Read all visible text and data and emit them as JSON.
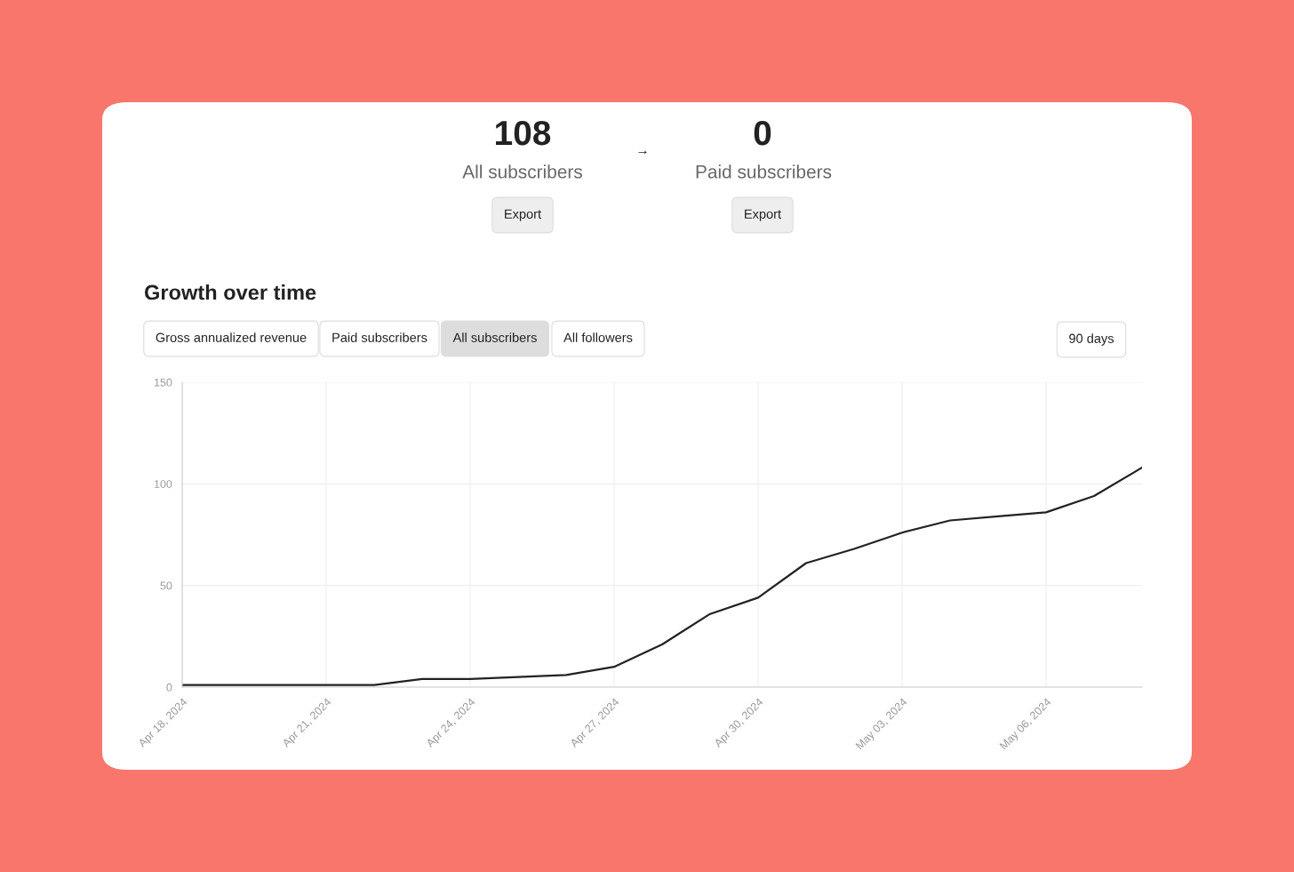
{
  "chart_data": {
    "type": "line",
    "title": "Growth over time",
    "annotations": [
      "108",
      "All subscribers",
      "→",
      "0",
      "Paid subscribers",
      "Export",
      "Export",
      "Gross annualized revenue",
      "Paid subscribers",
      "All subscribers",
      "All followers",
      "90 days"
    ],
    "x": [
      "2024-04-18",
      "2024-04-19",
      "2024-04-20",
      "2024-04-21",
      "2024-04-22",
      "2024-04-23",
      "2024-04-24",
      "2024-04-25",
      "2024-04-26",
      "2024-04-27",
      "2024-04-28",
      "2024-04-29",
      "2024-04-30",
      "2024-05-01",
      "2024-05-02",
      "2024-05-03",
      "2024-05-04",
      "2024-05-05",
      "2024-05-06",
      "2024-05-07",
      "2024-05-08"
    ],
    "series": [
      {
        "color": "#222222",
        "values": [
          1,
          1,
          1,
          1,
          1,
          4,
          4,
          5,
          6,
          10,
          21,
          36,
          44,
          61,
          68,
          76,
          82,
          84,
          86,
          94,
          108
        ]
      }
    ],
    "xlim": [
      "2024-04-18",
      "2024-05-08"
    ],
    "xticks": [
      {
        "value": "2024-04-18",
        "label": "Apr 18, 2024"
      },
      {
        "value": "2024-04-21",
        "label": "Apr 21, 2024"
      },
      {
        "value": "2024-04-24",
        "label": "Apr 24, 2024"
      },
      {
        "value": "2024-04-27",
        "label": "Apr 27, 2024"
      },
      {
        "value": "2024-04-30",
        "label": "Apr 30, 2024"
      },
      {
        "value": "2024-05-03",
        "label": "May 03, 2024"
      },
      {
        "value": "2024-05-06",
        "label": "May 06, 2024"
      }
    ],
    "ylim": [
      0,
      150
    ],
    "yticks": [
      0,
      50,
      100,
      150
    ],
    "grid": true,
    "marker": "none",
    "line_style": "solid"
  }
}
